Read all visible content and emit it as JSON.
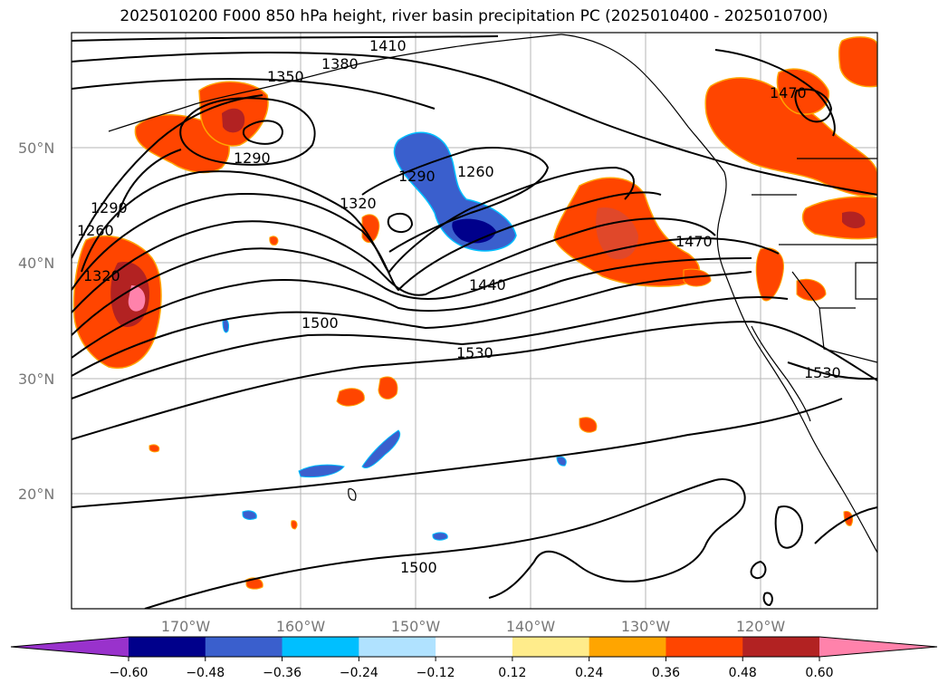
{
  "title": "2025010200 F000 850 hPa height, river basin precipitation PC (2025010400 - 2025010700)",
  "latitude_labels": [
    "50°N",
    "40°N",
    "30°N",
    "20°N"
  ],
  "longitude_labels": [
    "170°W",
    "160°W",
    "150°W",
    "140°W",
    "130°W",
    "120°W"
  ],
  "contour_labels": [
    "1410",
    "1380",
    "1350",
    "1290",
    "1260",
    "1290",
    "1320",
    "1260",
    "1290",
    "1320",
    "1440",
    "1470",
    "1470",
    "1500",
    "1530",
    "1530",
    "1500"
  ],
  "colorbar": {
    "tick_labels": [
      "−0.60",
      "−0.48",
      "−0.36",
      "−0.24",
      "−0.12",
      "0.12",
      "0.24",
      "0.36",
      "0.48",
      "0.60"
    ],
    "colors": [
      "#9932cc",
      "#00008b",
      "#3a5fcd",
      "#00bfff",
      "#b0e2ff",
      "#ffffff",
      "#ffec8b",
      "#ffa500",
      "#ff4500",
      "#b22222",
      "#ff82ab"
    ]
  }
}
